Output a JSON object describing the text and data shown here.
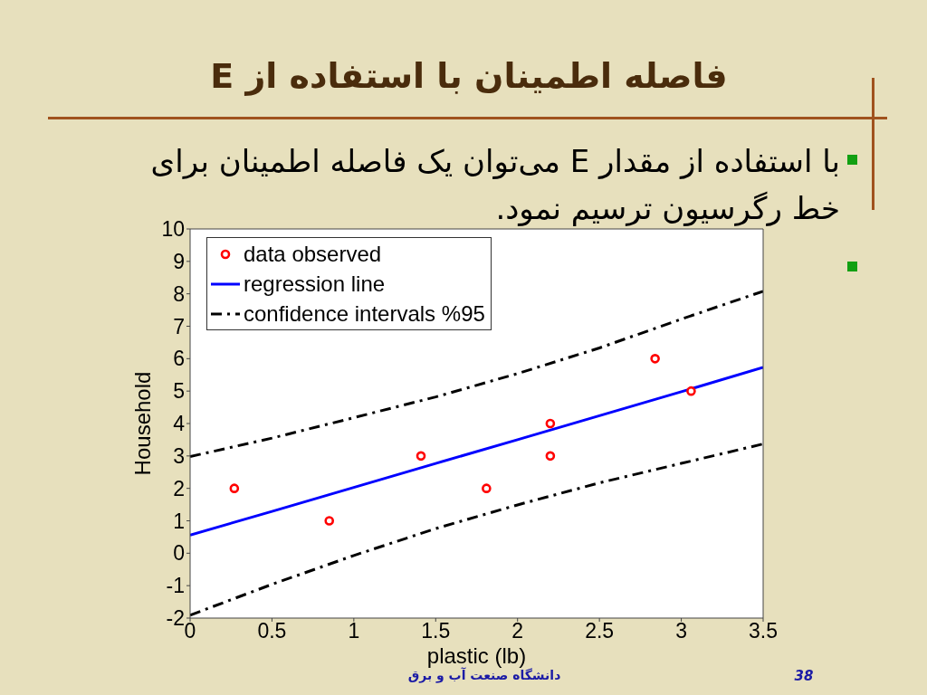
{
  "chart_data": {
    "type": "scatter",
    "title": "فاصله اطمینان با استفاده از E",
    "xlabel": "plastic (lb)",
    "ylabel": "Household",
    "xlim": [
      0,
      3.5
    ],
    "ylim": [
      -2,
      10
    ],
    "xticks": [
      0,
      0.5,
      1,
      1.5,
      2,
      2.5,
      3,
      3.5
    ],
    "yticks": [
      -2,
      -1,
      0,
      1,
      2,
      3,
      4,
      5,
      6,
      7,
      8,
      9,
      10
    ],
    "grid": false,
    "legend": "top left",
    "series": [
      {
        "name": "data observed",
        "color": "#ff0000",
        "marker": "circle",
        "x": [
          0.27,
          0.85,
          1.41,
          1.81,
          2.2,
          2.2,
          2.84,
          3.06
        ],
        "values": [
          2,
          1,
          3,
          2,
          4,
          3,
          6,
          5
        ]
      },
      {
        "name": "regression line",
        "type": "line",
        "color": "#0000ff",
        "line_style": "solid",
        "marker": "none",
        "x": [
          0,
          0.5,
          1,
          1.5,
          2,
          2.5,
          3,
          3.5
        ],
        "values": [
          0.56,
          1.29,
          2.03,
          2.77,
          3.5,
          4.24,
          4.98,
          5.73
        ]
      },
      {
        "name": "confidence intervals %95",
        "type": "line",
        "color": "#000000",
        "line_style": "dashed",
        "marker": "none",
        "x": [
          0,
          0.5,
          1,
          1.5,
          2,
          2.5,
          3,
          3.5
        ],
        "values": [
          2.98,
          3.55,
          4.18,
          4.82,
          5.54,
          6.33,
          7.22,
          8.08
        ]
      },
      {
        "type": "line",
        "color": "#000000",
        "line_style": "dashed",
        "marker": "none",
        "x": [
          0,
          0.5,
          1,
          1.5,
          2,
          2.5,
          3,
          3.5
        ],
        "values": [
          -1.91,
          -0.96,
          -0.07,
          0.76,
          1.49,
          2.17,
          2.77,
          3.37
        ]
      }
    ],
    "annotations": [
      "با استفاده از مقدار E می‌توان یک فاصله اطمینان برای خط رگرسیون ترسیم نمود.",
      "دانشگاه صنعت آب و برق",
      "38"
    ]
  }
}
